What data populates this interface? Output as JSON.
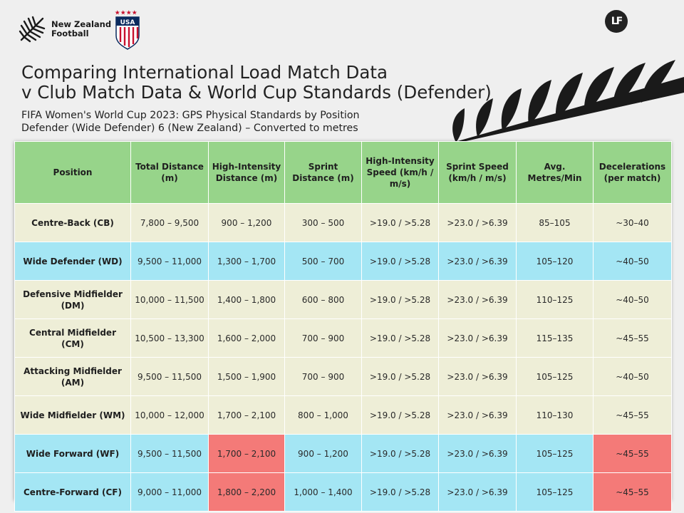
{
  "logos": {
    "nzf_text_line1": "New Zealand",
    "nzf_text_line2": "Football",
    "usa_text": "USA",
    "lf_text": "LF"
  },
  "title": {
    "line1": "Comparing International Load Match Data",
    "line2": "v Club Match Data & World Cup Standards (Defender)"
  },
  "subtitle": {
    "line1": "FIFA Women's World Cup 2023: GPS Physical Standards by Position",
    "line2": "Defender (Wide Defender) 6 (New Zealand) – Converted to metres"
  },
  "colors": {
    "header": "#97d48a",
    "cream_row": "#eeeed7",
    "blue_row": "#a4e6f4",
    "highlight": "#f47a78"
  },
  "table": {
    "headers": [
      "Position",
      "Total Distance (m)",
      "High-Intensity Distance (m)",
      "Sprint Distance (m)",
      "High-Intensity Speed (km/h / m/s)",
      "Sprint Speed (km/h / m/s)",
      "Avg. Metres/Min",
      "Decelerations (per match)"
    ],
    "rows": [
      [
        "Centre-Back (CB)",
        "7,800 – 9,500",
        "900 – 1,200",
        "300 – 500",
        ">19.0 / >5.28",
        ">23.0 / >6.39",
        "85–105",
        "~30–40"
      ],
      [
        "Wide Defender (WD)",
        "9,500 – 11,000",
        "1,300 – 1,700",
        "500 – 700",
        ">19.0 / >5.28",
        ">23.0 / >6.39",
        "105–120",
        "~40–50"
      ],
      [
        "Defensive Midfielder (DM)",
        "10,000 – 11,500",
        "1,400 – 1,800",
        "600 – 800",
        ">19.0 / >5.28",
        ">23.0 / >6.39",
        "110–125",
        "~40–50"
      ],
      [
        "Central Midfielder (CM)",
        "10,500 – 13,300",
        "1,600 – 2,000",
        "700 – 900",
        ">19.0 / >5.28",
        ">23.0 / >6.39",
        "115–135",
        "~45–55"
      ],
      [
        "Attacking Midfielder (AM)",
        "9,500 – 11,500",
        "1,500 – 1,900",
        "700 – 900",
        ">19.0 / >5.28",
        ">23.0 / >6.39",
        "105–125",
        "~40–50"
      ],
      [
        "Wide Midfielder (WM)",
        "10,000 – 12,000",
        "1,700 – 2,100",
        "800 – 1,000",
        ">19.0 / >5.28",
        ">23.0 / >6.39",
        "110–130",
        "~45–55"
      ],
      [
        "Wide Forward (WF)",
        "9,500 – 11,500",
        "1,700 – 2,100",
        "900 – 1,200",
        ">19.0 / >5.28",
        ">23.0 / >6.39",
        "105–125",
        "~45–55"
      ],
      [
        "Centre-Forward (CF)",
        "9,000 – 11,000",
        "1,800 – 2,200",
        "1,000 – 1,400",
        ">19.0 / >5.28",
        ">23.0 / >6.39",
        "105–125",
        "~45–55"
      ]
    ]
  }
}
